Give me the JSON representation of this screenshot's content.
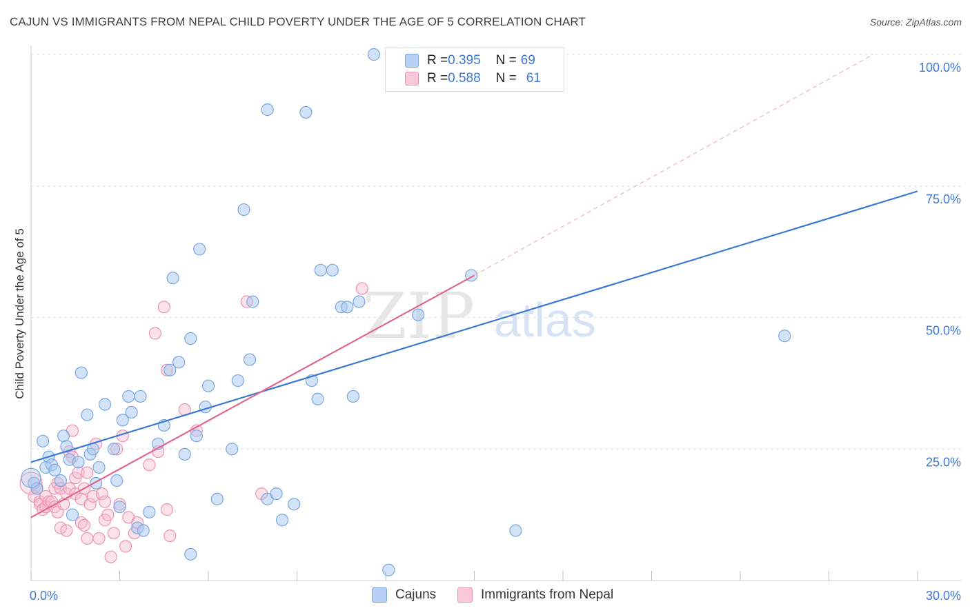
{
  "title": "CAJUN VS IMMIGRANTS FROM NEPAL CHILD POVERTY UNDER THE AGE OF 5 CORRELATION CHART",
  "source": "Source: ZipAtlas.com",
  "watermark": {
    "zip": "ZIP",
    "atlas": "atlas"
  },
  "legend": {
    "rows": [
      {
        "r_label": "R = ",
        "r_value": "0.395",
        "n_label": "N = ",
        "n_value": "69"
      },
      {
        "r_label": "R = ",
        "r_value": "0.588",
        "n_label": "N = ",
        "n_value": "61"
      }
    ]
  },
  "bottom_legend": {
    "cajuns": "Cajuns",
    "nepal": "Immigrants from Nepal"
  },
  "colors": {
    "cajuns_fill": "#a8c8f0",
    "cajuns_stroke": "#7aa6e0",
    "cajuns_line": "#3b78d0",
    "nepal_fill": "#f7bcd0",
    "nepal_stroke": "#ec93b3",
    "nepal_line": "#e0668f",
    "axis_label": "#3c78d8",
    "grid": "#dddddd"
  },
  "chart_data": {
    "type": "scatter",
    "title": "CAJUN VS IMMIGRANTS FROM NEPAL CHILD POVERTY UNDER THE AGE OF 5 CORRELATION CHART",
    "xlabel": "",
    "ylabel": "Child Poverty Under the Age of 5",
    "xlim": [
      0,
      30
    ],
    "ylim": [
      0,
      100
    ],
    "x_tick_labels": [
      {
        "value": 0,
        "label": "0.0%"
      },
      {
        "value": 30,
        "label": "30.0%"
      }
    ],
    "y_tick_labels": [
      {
        "value": 100,
        "label": "100.0%"
      },
      {
        "value": 75,
        "label": "75.0%"
      },
      {
        "value": 50,
        "label": "50.0%"
      },
      {
        "value": 25,
        "label": "25.0%"
      }
    ],
    "grid": true,
    "legend_position": "top-center",
    "series": [
      {
        "name": "Cajuns",
        "r": 0.395,
        "n": 69,
        "trend": {
          "x": [
            0,
            30
          ],
          "y": [
            22.5,
            74.0
          ]
        },
        "points": [
          [
            0.1,
            18.5
          ],
          [
            0.2,
            17.5
          ],
          [
            0.4,
            26.5
          ],
          [
            0.5,
            21.5
          ],
          [
            0.6,
            23.5
          ],
          [
            0.7,
            22.0
          ],
          [
            0.8,
            21.0
          ],
          [
            1.0,
            19.0
          ],
          [
            1.1,
            27.5
          ],
          [
            1.2,
            25.5
          ],
          [
            1.3,
            23.0
          ],
          [
            1.4,
            12.5
          ],
          [
            1.6,
            22.5
          ],
          [
            1.7,
            39.5
          ],
          [
            1.9,
            31.5
          ],
          [
            2.0,
            24.0
          ],
          [
            2.1,
            25.0
          ],
          [
            2.2,
            18.5
          ],
          [
            2.3,
            21.5
          ],
          [
            2.5,
            33.5
          ],
          [
            2.8,
            25.0
          ],
          [
            2.9,
            19.0
          ],
          [
            3.0,
            14.0
          ],
          [
            3.1,
            30.5
          ],
          [
            3.3,
            35.0
          ],
          [
            3.4,
            32.0
          ],
          [
            3.6,
            10.0
          ],
          [
            3.7,
            35.0
          ],
          [
            3.8,
            9.5
          ],
          [
            4.0,
            13.0
          ],
          [
            4.3,
            26.0
          ],
          [
            4.5,
            29.5
          ],
          [
            4.7,
            40.0
          ],
          [
            4.8,
            57.5
          ],
          [
            5.0,
            41.5
          ],
          [
            5.2,
            24.0
          ],
          [
            5.4,
            5.0
          ],
          [
            5.4,
            46.0
          ],
          [
            5.6,
            27.5
          ],
          [
            5.7,
            63.0
          ],
          [
            5.9,
            33.0
          ],
          [
            6.0,
            37.0
          ],
          [
            6.3,
            15.5
          ],
          [
            6.8,
            25.0
          ],
          [
            7.0,
            38.0
          ],
          [
            7.2,
            70.5
          ],
          [
            7.4,
            42.0
          ],
          [
            7.5,
            53.0
          ],
          [
            8.0,
            89.5
          ],
          [
            8.0,
            15.5
          ],
          [
            8.3,
            16.5
          ],
          [
            8.5,
            11.5
          ],
          [
            8.9,
            14.5
          ],
          [
            9.3,
            89.0
          ],
          [
            9.5,
            38.0
          ],
          [
            9.7,
            34.5
          ],
          [
            9.8,
            59.0
          ],
          [
            10.2,
            59.0
          ],
          [
            10.5,
            52.0
          ],
          [
            10.7,
            52.0
          ],
          [
            10.9,
            35.0
          ],
          [
            11.1,
            53.0
          ],
          [
            11.6,
            100.0
          ],
          [
            12.1,
            2.0
          ],
          [
            13.1,
            50.5
          ],
          [
            14.9,
            58.0
          ],
          [
            16.4,
            9.5
          ],
          [
            25.5,
            46.5
          ],
          [
            0.0,
            19.5
          ]
        ]
      },
      {
        "name": "Immigrants from Nepal",
        "r": 0.588,
        "n": 61,
        "trend": {
          "x": [
            0,
            15
          ],
          "y": [
            12.0,
            58.0
          ]
        },
        "trend_extended": {
          "x": [
            15,
            28.5
          ],
          "y": [
            58.0,
            100.0
          ]
        },
        "points": [
          [
            0.1,
            16.0
          ],
          [
            0.2,
            17.5
          ],
          [
            0.3,
            15.0
          ],
          [
            0.3,
            14.5
          ],
          [
            0.4,
            13.5
          ],
          [
            0.5,
            16.0
          ],
          [
            0.5,
            14.0
          ],
          [
            0.6,
            15.0
          ],
          [
            0.7,
            15.0
          ],
          [
            0.8,
            14.0
          ],
          [
            0.8,
            17.5
          ],
          [
            0.9,
            18.5
          ],
          [
            0.9,
            13.0
          ],
          [
            1.0,
            17.5
          ],
          [
            1.0,
            10.0
          ],
          [
            1.1,
            14.5
          ],
          [
            1.2,
            9.5
          ],
          [
            1.2,
            16.5
          ],
          [
            1.3,
            24.5
          ],
          [
            1.3,
            17.5
          ],
          [
            1.4,
            28.5
          ],
          [
            1.4,
            23.5
          ],
          [
            1.5,
            19.5
          ],
          [
            1.5,
            16.5
          ],
          [
            1.6,
            20.5
          ],
          [
            1.7,
            11.0
          ],
          [
            1.7,
            15.5
          ],
          [
            1.8,
            17.5
          ],
          [
            1.8,
            10.5
          ],
          [
            1.9,
            20.5
          ],
          [
            1.9,
            8.0
          ],
          [
            2.0,
            14.5
          ],
          [
            2.1,
            16.0
          ],
          [
            2.2,
            26.0
          ],
          [
            2.3,
            8.0
          ],
          [
            2.4,
            16.5
          ],
          [
            2.5,
            15.0
          ],
          [
            2.5,
            11.5
          ],
          [
            2.6,
            12.5
          ],
          [
            2.7,
            4.5
          ],
          [
            2.8,
            9.0
          ],
          [
            2.9,
            25.0
          ],
          [
            3.0,
            14.5
          ],
          [
            3.1,
            27.5
          ],
          [
            3.2,
            6.5
          ],
          [
            3.3,
            12.0
          ],
          [
            3.5,
            9.0
          ],
          [
            3.6,
            11.0
          ],
          [
            4.0,
            22.0
          ],
          [
            4.2,
            47.0
          ],
          [
            4.3,
            24.5
          ],
          [
            4.5,
            52.0
          ],
          [
            4.6,
            40.0
          ],
          [
            4.6,
            13.5
          ],
          [
            4.7,
            8.5
          ],
          [
            5.2,
            32.5
          ],
          [
            5.6,
            28.5
          ],
          [
            7.3,
            53.0
          ],
          [
            7.8,
            16.5
          ],
          [
            11.2,
            55.5
          ],
          [
            0.0,
            18.5
          ]
        ]
      }
    ]
  }
}
